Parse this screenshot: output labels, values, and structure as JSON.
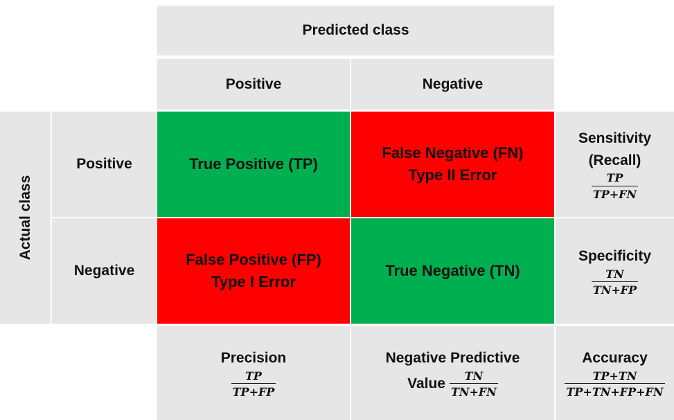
{
  "header": {
    "predicted_class": "Predicted class",
    "actual_class": "Actual class"
  },
  "columns": {
    "positive": "Positive",
    "negative": "Negative"
  },
  "rows": {
    "positive": "Positive",
    "negative": "Negative"
  },
  "cells": {
    "tp": "True Positive (TP)",
    "fn_line1": "False Negative (FN)",
    "fn_line2": "Type II Error",
    "fp_line1": "False Positive (FP)",
    "fp_line2": "Type I Error",
    "tn": "True Negative (TN)"
  },
  "metrics": {
    "sensitivity": {
      "line1": "Sensitivity",
      "line2": "(Recall)",
      "num": "TP",
      "den": "TP+FN"
    },
    "specificity": {
      "label": "Specificity",
      "num": "TN",
      "den": "TN+FP"
    },
    "precision": {
      "label": "Precision",
      "num": "TP",
      "den": "TP+FP"
    },
    "npv": {
      "line1": "Negative Predictive",
      "line2": "Value",
      "num": "TN",
      "den": "TN+FN"
    },
    "accuracy": {
      "label": "Accuracy",
      "num": "TP+TN",
      "den": "TP+TN+FP+FN"
    }
  },
  "colors": {
    "correct": "#00b050",
    "error": "#ff0000",
    "header_bg": "#e6e6e6"
  }
}
